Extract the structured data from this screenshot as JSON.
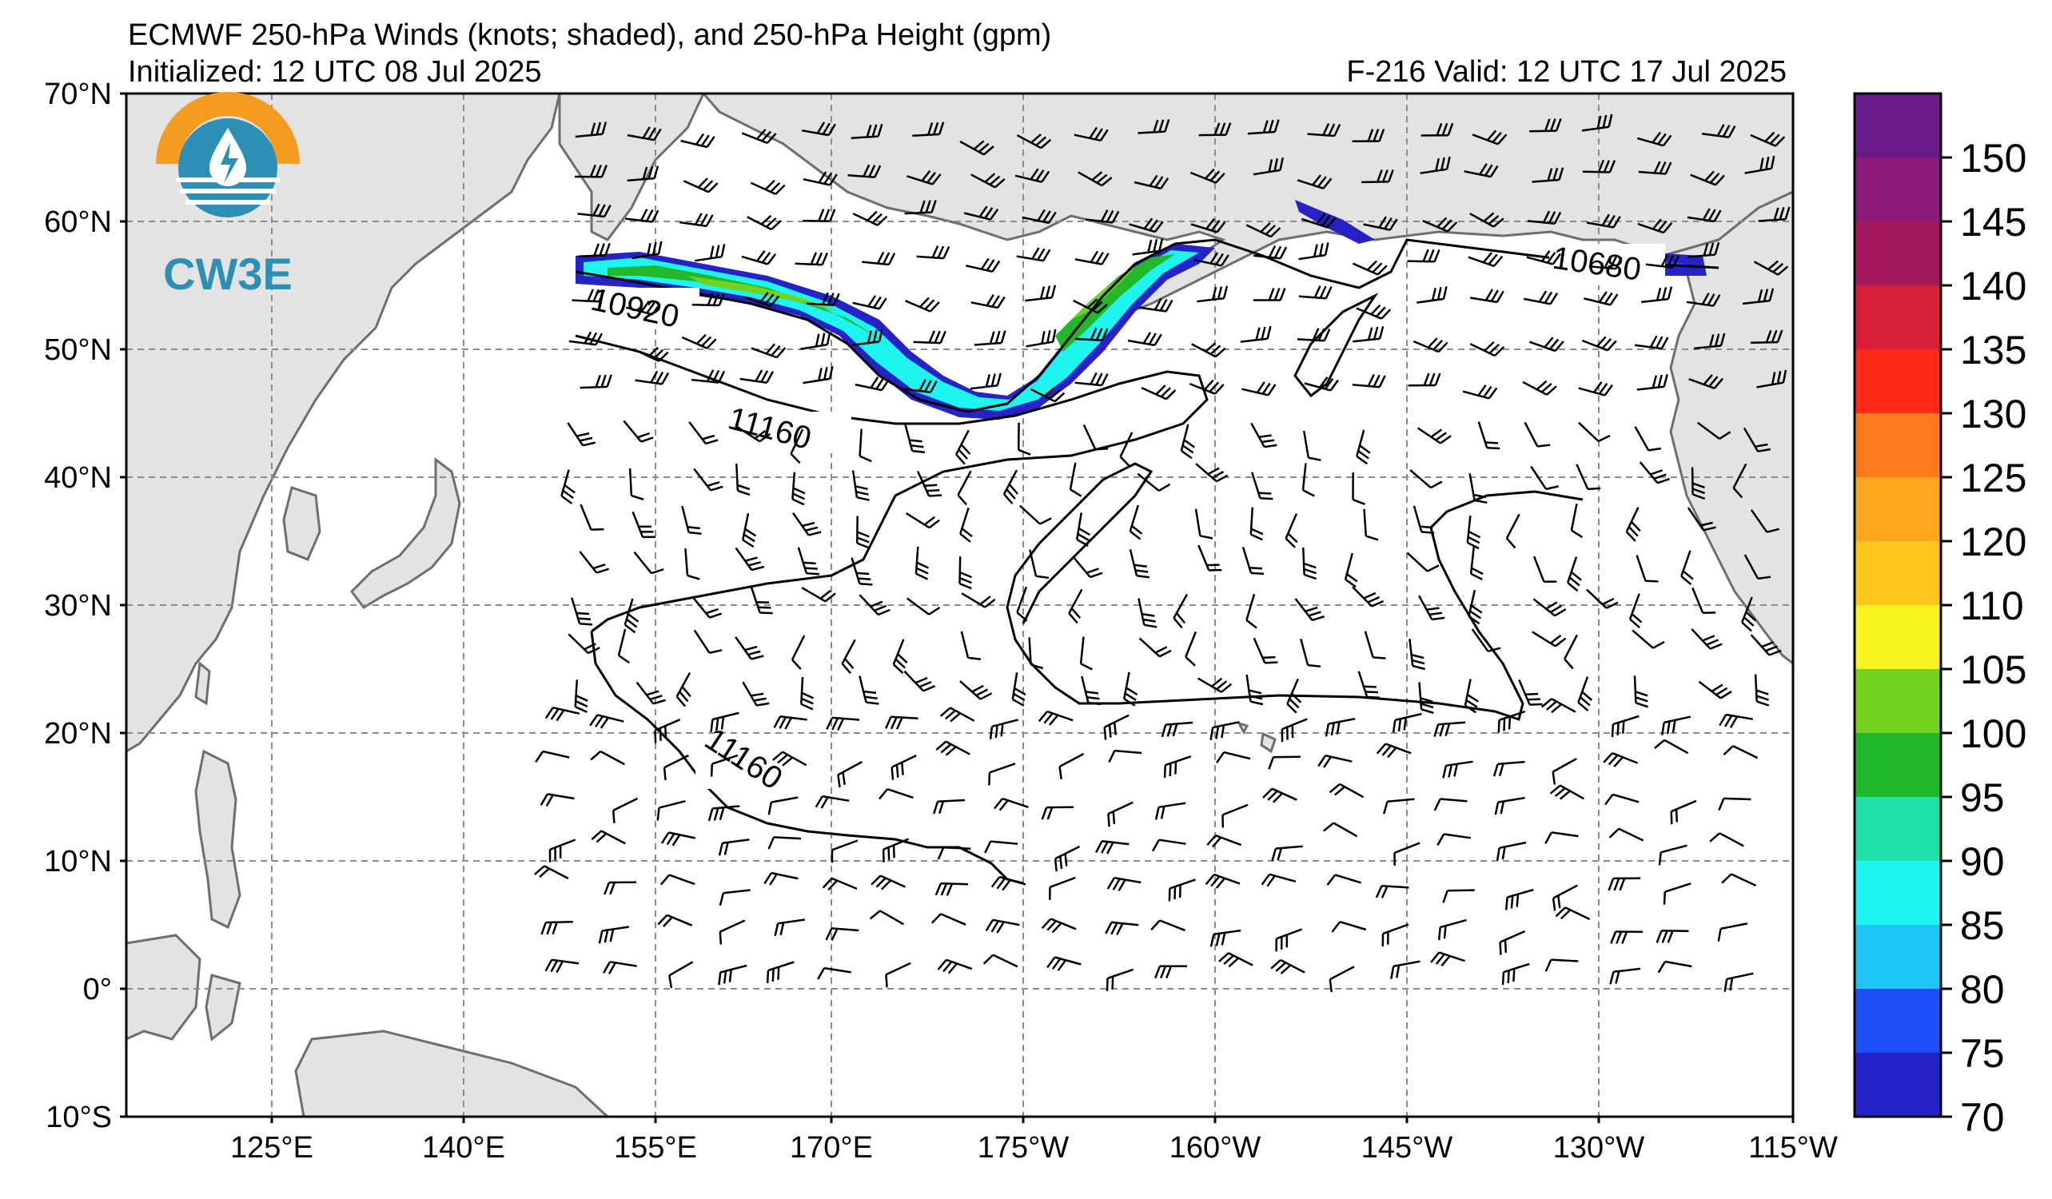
{
  "header": {
    "title": "ECMWF 250-hPa Winds (knots; shaded), and 250-hPa Height (gpm)",
    "init": "Initialized: 12 UTC 08 Jul 2025",
    "valid": "F-216  Valid: 12 UTC 17 Jul 2025"
  },
  "logo": {
    "text": "CW3E",
    "colors": {
      "ring": "#f39c1f",
      "water": "#2e8fb5"
    }
  },
  "map": {
    "lat_labels": [
      "70°N",
      "60°N",
      "50°N",
      "40°N",
      "30°N",
      "20°N",
      "10°N",
      "0°",
      "10°S"
    ],
    "lon_labels": [
      "125°E",
      "140°E",
      "155°E",
      "170°E",
      "175°W",
      "160°W",
      "145°W",
      "130°W",
      "115°W"
    ],
    "contour_labels": [
      "10920",
      "11160",
      "11160",
      "10680"
    ],
    "land_color": "#e3e3e3",
    "coast_color": "#6e6e6e"
  },
  "colorbar": {
    "labels": [
      "150",
      "145",
      "140",
      "135",
      "130",
      "125",
      "120",
      "110",
      "105",
      "100",
      "95",
      "90",
      "85",
      "80",
      "75",
      "70"
    ],
    "colors": [
      "#6a1b8a",
      "#8b1a7a",
      "#a4195c",
      "#d81f35",
      "#ff2a1a",
      "#ff7a1f",
      "#ffa620",
      "#ffc51c",
      "#f8f31e",
      "#74d11e",
      "#21b92a",
      "#1fe0a8",
      "#1ef5f0",
      "#1fc4f7",
      "#1f50f7",
      "#2622c8"
    ]
  }
}
